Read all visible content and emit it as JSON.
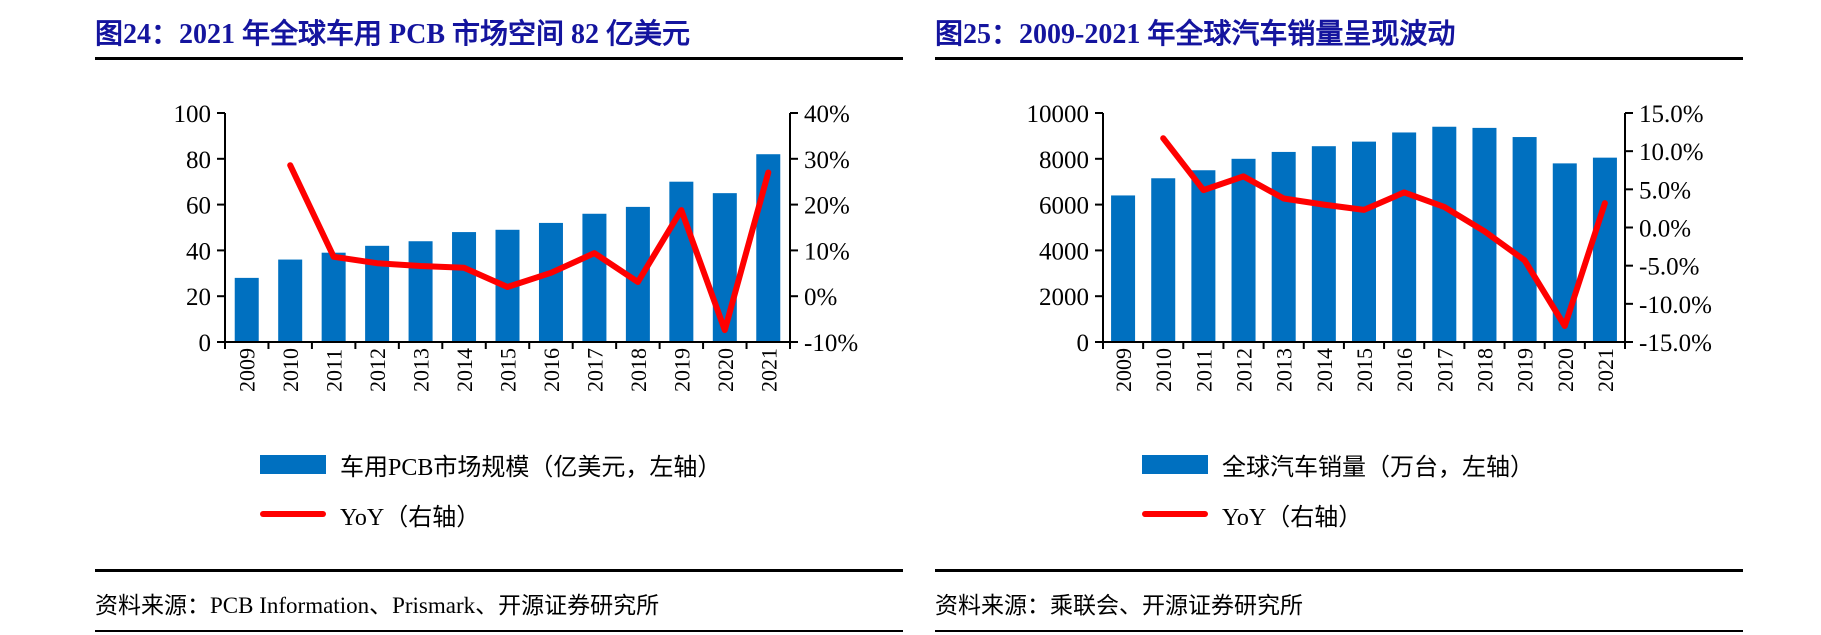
{
  "colors": {
    "title_blue": "#14149E",
    "bar_blue": "#0070C0",
    "line_red": "#FF0000",
    "rule_black": "#000000"
  },
  "figures": [
    {
      "id": "fig24",
      "title": "图24：2021 年全球车用 PCB 市场空间 82 亿美元",
      "legend": [
        {
          "kind": "bar",
          "label": "车用PCB市场规模（亿美元，左轴）"
        },
        {
          "kind": "line",
          "label": "YoY（右轴）"
        }
      ],
      "source": "资料来源：PCB Information、Prismark、开源证券研究所"
    },
    {
      "id": "fig25",
      "title": "图25：2009-2021 年全球汽车销量呈现波动",
      "legend": [
        {
          "kind": "bar",
          "label": "全球汽车销量（万台，左轴）"
        },
        {
          "kind": "line",
          "label": "YoY（右轴）"
        }
      ],
      "source": "资料来源：乘联会、开源证券研究所"
    }
  ],
  "chart_data": [
    {
      "type": "bar",
      "title": "图24：2021 年全球车用 PCB 市场空间 82 亿美元",
      "categories": [
        "2009",
        "2010",
        "2011",
        "2012",
        "2013",
        "2014",
        "2015",
        "2016",
        "2017",
        "2018",
        "2019",
        "2020",
        "2021"
      ],
      "series": [
        {
          "name": "车用PCB市场规模（亿美元，左轴）",
          "kind": "bar",
          "axis": "left",
          "color": "#0070C0",
          "values": [
            28,
            36,
            39,
            42,
            44,
            48,
            49,
            52,
            56,
            59,
            70,
            65,
            82
          ]
        },
        {
          "name": "YoY（右轴）",
          "kind": "line",
          "axis": "right",
          "color": "#FF0000",
          "values": [
            null,
            28.6,
            8.6,
            7.2,
            6.6,
            6.2,
            2.0,
            5.1,
            9.4,
            3.1,
            18.8,
            -7.4,
            27.0
          ]
        }
      ],
      "left_axis": {
        "min": 0,
        "max": 100,
        "ticks": [
          0,
          20,
          40,
          60,
          80,
          100
        ],
        "tick_labels": [
          "0",
          "20",
          "40",
          "60",
          "80",
          "100"
        ]
      },
      "right_axis": {
        "min": -10,
        "max": 40,
        "ticks": [
          -10,
          0,
          10,
          20,
          30,
          40
        ],
        "tick_labels": [
          "-10%",
          "0%",
          "10%",
          "20%",
          "30%",
          "40%"
        ]
      },
      "grid": false,
      "legend_position": "bottom"
    },
    {
      "type": "bar",
      "title": "图25：2009-2021 年全球汽车销量呈现波动",
      "categories": [
        "2009",
        "2010",
        "2011",
        "2012",
        "2013",
        "2014",
        "2015",
        "2016",
        "2017",
        "2018",
        "2019",
        "2020",
        "2021"
      ],
      "series": [
        {
          "name": "全球汽车销量（万台，左轴）",
          "kind": "bar",
          "axis": "left",
          "color": "#0070C0",
          "values": [
            6400,
            7150,
            7500,
            8000,
            8300,
            8550,
            8750,
            9150,
            9400,
            9350,
            8950,
            7800,
            8050
          ]
        },
        {
          "name": "YoY（右轴）",
          "kind": "line",
          "axis": "right",
          "color": "#FF0000",
          "values": [
            null,
            11.7,
            4.9,
            6.7,
            3.8,
            3.0,
            2.3,
            4.6,
            2.7,
            -0.5,
            -4.3,
            -12.9,
            3.2
          ]
        }
      ],
      "left_axis": {
        "min": 0,
        "max": 10000,
        "ticks": [
          0,
          2000,
          4000,
          6000,
          8000,
          10000
        ],
        "tick_labels": [
          "0",
          "2000",
          "4000",
          "6000",
          "8000",
          "10000"
        ]
      },
      "right_axis": {
        "min": -15,
        "max": 15,
        "ticks": [
          -15,
          -10,
          -5,
          0,
          5,
          10,
          15
        ],
        "tick_labels": [
          "-15.0%",
          "-10.0%",
          "-5.0%",
          "0.0%",
          "5.0%",
          "10.0%",
          "15.0%"
        ]
      },
      "grid": false,
      "legend_position": "bottom"
    }
  ]
}
